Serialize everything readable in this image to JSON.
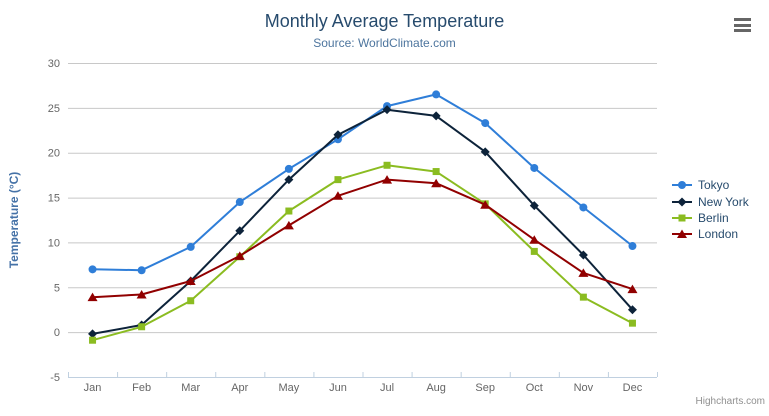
{
  "chart_data": {
    "type": "line",
    "title": "Monthly Average Temperature",
    "subtitle": "Source: WorldClimate.com",
    "xlabel": "",
    "ylabel": "Temperature (°C)",
    "categories": [
      "Jan",
      "Feb",
      "Mar",
      "Apr",
      "May",
      "Jun",
      "Jul",
      "Aug",
      "Sep",
      "Oct",
      "Nov",
      "Dec"
    ],
    "series": [
      {
        "name": "Tokyo",
        "color": "#2f7ed8",
        "marker": "circle",
        "values": [
          7.0,
          6.9,
          9.5,
          14.5,
          18.2,
          21.5,
          25.2,
          26.5,
          23.3,
          18.3,
          13.9,
          9.6
        ]
      },
      {
        "name": "New York",
        "color": "#0d233a",
        "marker": "diamond",
        "values": [
          -0.2,
          0.8,
          5.7,
          11.3,
          17.0,
          22.0,
          24.8,
          24.1,
          20.1,
          14.1,
          8.6,
          2.5
        ]
      },
      {
        "name": "Berlin",
        "color": "#8bbc21",
        "marker": "square",
        "values": [
          -0.9,
          0.6,
          3.5,
          8.4,
          13.5,
          17.0,
          18.6,
          17.9,
          14.3,
          9.0,
          3.9,
          1.0
        ]
      },
      {
        "name": "London",
        "color": "#910000",
        "marker": "triangle",
        "values": [
          3.9,
          4.2,
          5.7,
          8.5,
          11.9,
          15.2,
          17.0,
          16.6,
          14.2,
          10.3,
          6.6,
          4.8
        ]
      }
    ],
    "ylim": [
      -5,
      30
    ],
    "y_ticks": [
      30,
      25,
      20,
      15,
      10,
      5,
      0,
      -5
    ],
    "grid": true,
    "legend_position": "right",
    "colors": {
      "grid_line": "#c8c8c8",
      "axis_line": "#c0d0e0",
      "axis_label": "#666666",
      "title": "#274b6d",
      "subtitle": "#4d759e",
      "axis_title": "#4572a7",
      "legend_text": "#274b6d"
    }
  },
  "credits": {
    "label": "Highcharts.com"
  }
}
